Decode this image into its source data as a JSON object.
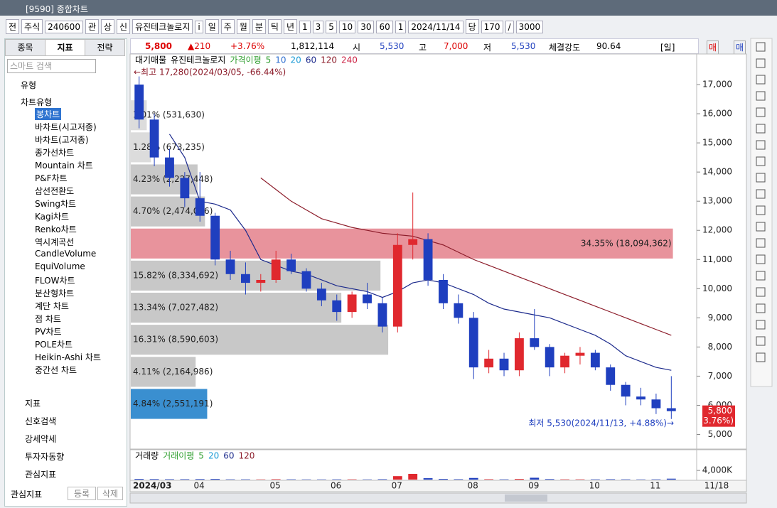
{
  "window": {
    "title": "[9590] 종합차트"
  },
  "toolbar": {
    "items": [
      "전",
      "주식",
      "240600",
      "관",
      "상",
      "신",
      "유진테크놀로지",
      "i",
      "일",
      "주",
      "월",
      "분",
      "틱",
      "년",
      "1",
      "3",
      "5",
      "10",
      "30",
      "60"
    ],
    "count": "1",
    "date": "2024/11/14",
    "dang": "당",
    "n1": "170",
    "slash": "/",
    "n2": "3000"
  },
  "quote": {
    "price": "5,800",
    "change": "▲210",
    "rate": "+3.76%",
    "volume": "1,812,114",
    "open_label": "시",
    "open": "5,530",
    "high_label": "고",
    "high": "7,000",
    "low_label": "저",
    "low": "5,530",
    "strength_label": "체결강도",
    "strength": "90.64",
    "period": "[일]",
    "buy": "매수",
    "sell": "매도"
  },
  "left_panel": {
    "tabs": [
      "종목",
      "지표",
      "전략"
    ],
    "search": "스마트 검색",
    "group": "유형",
    "subgroup": "차트유형",
    "chart_types": [
      "봉차트",
      "바차트(시고저종)",
      "바차트(고저종)",
      "종가선차트",
      "Mountain 차트",
      "P&F차트",
      "삼선전환도",
      "Swing차트",
      "Kagi차트",
      "Renko차트",
      "역시계곡선",
      "CandleVolume",
      "EquiVolume",
      "FLOW차트",
      "분산형차트",
      "계단 차트",
      "점 차트",
      "PV차트",
      "POLE차트",
      "Heikin-Ashi 차트",
      "중간선 차트"
    ],
    "groups": [
      "지표",
      "신호검색",
      "강세약세",
      "투자자동향",
      "관심지표"
    ],
    "footer": {
      "label": "관심지표",
      "add": "등록",
      "remove": "삭제"
    }
  },
  "chart_data": {
    "type": "candlestick",
    "header": {
      "profile": "대기매물",
      "name": "유진테크놀로지",
      "ma_label": "가격이평"
    },
    "categories": [
      "2024/03",
      null,
      null,
      null,
      "04",
      null,
      null,
      null,
      null,
      "05",
      null,
      null,
      null,
      "06",
      null,
      null,
      null,
      "07",
      null,
      null,
      null,
      null,
      "08",
      null,
      null,
      null,
      "09",
      null,
      null,
      null,
      "10",
      null,
      null,
      null,
      "11",
      null
    ],
    "open": [
      17000,
      15800,
      14500,
      13800,
      13100,
      12500,
      11000,
      10500,
      10200,
      10300,
      11000,
      10600,
      10000,
      9600,
      9200,
      9800,
      9500,
      8700,
      11500,
      11700,
      10300,
      9500,
      9000,
      7300,
      7600,
      7200,
      8300,
      8000,
      7300,
      7700,
      7800,
      7300,
      6700,
      6300,
      6200,
      5900
    ],
    "high": [
      17280,
      16000,
      14800,
      14000,
      14000,
      12600,
      11300,
      10900,
      10500,
      11300,
      11200,
      10700,
      10200,
      9800,
      9900,
      10200,
      9700,
      11900,
      13300,
      11900,
      10500,
      9800,
      9200,
      7900,
      7800,
      8500,
      9300,
      8100,
      7800,
      8000,
      7900,
      7400,
      6800,
      6600,
      6400,
      7000
    ],
    "low": [
      15500,
      14200,
      13500,
      12800,
      12300,
      10800,
      10300,
      9800,
      9900,
      10200,
      10500,
      9900,
      9400,
      8900,
      9000,
      9300,
      8500,
      8500,
      11000,
      10100,
      9300,
      8800,
      6900,
      7100,
      7000,
      7000,
      7900,
      7000,
      7100,
      7400,
      7200,
      6500,
      6000,
      6000,
      5700,
      5530
    ],
    "close": [
      15800,
      14500,
      13800,
      13100,
      12500,
      11000,
      10500,
      10200,
      10300,
      11000,
      10600,
      10000,
      9600,
      9200,
      9800,
      9500,
      8700,
      11500,
      11700,
      10300,
      9500,
      9000,
      7300,
      7600,
      7200,
      8300,
      8000,
      7300,
      7700,
      7800,
      7300,
      6700,
      6300,
      6200,
      5900,
      5800
    ],
    "colors": {
      "up": "#e0282e",
      "down": "#1f3fbf"
    },
    "ylim": [
      4500,
      18000
    ],
    "yticks": [
      {
        "value": 5000,
        "label": "5,000"
      },
      {
        "value": 6000,
        "label": "6,000"
      },
      {
        "value": 7000,
        "label": "7,000"
      },
      {
        "value": 8000,
        "label": "8,000"
      },
      {
        "value": 9000,
        "label": "9,000"
      },
      {
        "value": 10000,
        "label": "10,000"
      },
      {
        "value": 11000,
        "label": "11,000"
      },
      {
        "value": 12000,
        "label": "12,000"
      },
      {
        "value": 13000,
        "label": "13,000"
      },
      {
        "value": 14000,
        "label": "14,000"
      },
      {
        "value": 15000,
        "label": "15,000"
      },
      {
        "value": 16000,
        "label": "16,000"
      },
      {
        "value": 17000,
        "label": "17,000"
      }
    ],
    "series": [
      {
        "name": "5",
        "color": "#2e9e2e"
      },
      {
        "name": "10",
        "color": "#2f6fd0"
      },
      {
        "name": "20",
        "color": "#1a9ad6"
      },
      {
        "name": "60",
        "color": "#1c2a8c",
        "values": [
          null,
          null,
          15300,
          14500,
          13000,
          12900,
          12700,
          12000,
          11000,
          10800,
          10600,
          10500,
          10300,
          10100,
          10000,
          9900,
          9700,
          9900,
          10200,
          10300,
          10200,
          10000,
          9800,
          9500,
          9300,
          9200,
          9100,
          9000,
          8800,
          8600,
          8400,
          8100,
          7700,
          7500,
          7300,
          7200
        ]
      },
      {
        "name": "120",
        "color": "#8c1c2a",
        "values": [
          null,
          null,
          null,
          null,
          null,
          null,
          null,
          null,
          13800,
          13400,
          13000,
          12700,
          12400,
          12250,
          12100,
          12000,
          11900,
          11850,
          11800,
          11650,
          11500,
          11250,
          11000,
          10800,
          10600,
          10400,
          10200,
          10000,
          9800,
          9600,
          9400,
          9200,
          9000,
          8800,
          8600,
          8400
        ]
      },
      {
        "name": "240",
        "color": "#cc2244"
      }
    ],
    "annotations": {
      "high": "←최고 17,280(2024/03/05, -66.44%)",
      "low": "최저 5,530(2024/11/13, +4.88%)→"
    },
    "last_price": {
      "value": 5800,
      "label": "5,800",
      "change_label": "(3.76%)"
    },
    "profile": {
      "bins": [
        5510,
        6610,
        7710,
        8810,
        9910,
        11010,
        12110,
        13210,
        14310,
        15410,
        16510
      ],
      "values": [
        4.84,
        4.11,
        16.31,
        13.34,
        15.82,
        34.35,
        4.7,
        4.23,
        1.28,
        1.01
      ],
      "value_labels": [
        "4.84% (2,551,191)",
        "4.11% (2,164,986)",
        "16.31% (8,590,603)",
        "13.34% (7,027,482)",
        "15.82% (8,334,692)",
        "34.35% (18,094,362)",
        "4.70% (2,474,006)",
        "4.23% (2,227,448)",
        "1.28% (673,235)",
        "1.01% (531,630)"
      ],
      "colors": [
        "#3a8fd0",
        "#c8c8c8",
        "#c8c8c8",
        "#c8c8c8",
        "#c8c8c8",
        "#e8939c",
        "#c8c8c8",
        "#c8c8c8",
        "#dcdcdc",
        "#dcdcdc"
      ]
    },
    "volume": {
      "title": "거래량",
      "ma_label": "거래이평",
      "series": [
        {
          "name": "5",
          "color": "#2e9e2e"
        },
        {
          "name": "20",
          "color": "#1a9ad6"
        },
        {
          "name": "60",
          "color": "#1c2a8c"
        },
        {
          "name": "120",
          "color": "#8c1c2a"
        }
      ],
      "values": [
        300,
        250,
        200,
        200,
        250,
        300,
        150,
        150,
        120,
        200,
        150,
        120,
        120,
        150,
        150,
        120,
        200,
        1500,
        2500,
        600,
        300,
        200,
        700,
        200,
        150,
        300,
        800,
        250,
        150,
        150,
        150,
        200,
        150,
        120,
        150,
        400
      ],
      "ylim": [
        0,
        11500
      ],
      "yticks": [
        {
          "value": 4000,
          "label": "4,000K"
        }
      ]
    },
    "cursor_date": "11/18"
  }
}
